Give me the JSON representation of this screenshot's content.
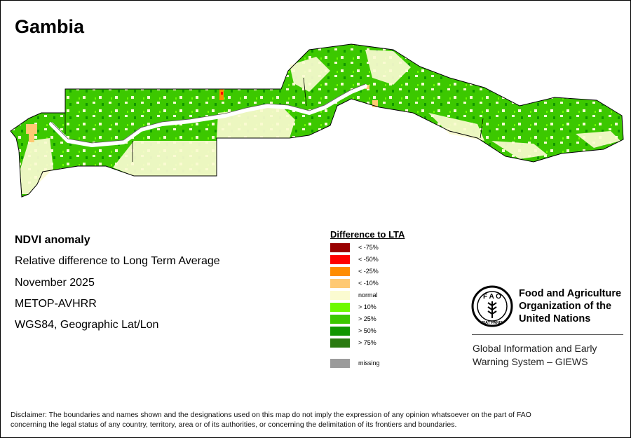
{
  "map": {
    "title": "Gambia",
    "colors": {
      "lt_minus_75": "#990000",
      "lt_minus_50": "#ff0000",
      "lt_minus_25": "#ff8c00",
      "lt_minus_10": "#ffc973",
      "normal": "#fbfbd1",
      "gt_10": "#6efa00",
      "gt_25": "#3cc800",
      "gt_50": "#119600",
      "gt_75": "#2a7a10",
      "missing": "#9b9b9b",
      "river": "#ffffff",
      "border": "#000000"
    }
  },
  "info": {
    "heading": "NDVI anomaly",
    "line1": "Relative difference to Long Term Average",
    "line2": "November 2025",
    "line3": "METOP-AVHRR",
    "line4": "WGS84, Geographic Lat/Lon"
  },
  "legend": {
    "title": "Difference to LTA",
    "items": [
      {
        "label": "< -75%",
        "color": "#990000"
      },
      {
        "label": "< -50%",
        "color": "#ff0000"
      },
      {
        "label": "< -25%",
        "color": "#ff8c00"
      },
      {
        "label": "< -10%",
        "color": "#ffc973"
      },
      {
        "label": "normal",
        "color": "#fbfbd1"
      },
      {
        "label": "> 10%",
        "color": "#6efa00"
      },
      {
        "label": "> 25%",
        "color": "#3cc800"
      },
      {
        "label": "> 50%",
        "color": "#119600"
      },
      {
        "label": "> 75%",
        "color": "#2a7a10"
      }
    ],
    "missing": {
      "label": "missing",
      "color": "#9b9b9b"
    }
  },
  "logo": {
    "org_line1": "Food and Agriculture",
    "org_line2": "Organization of the",
    "org_line3": "United Nations",
    "emblem_text": "FIAT PANIS",
    "emblem_letters": "F A O"
  },
  "giews": {
    "line1": "Global Information and Early",
    "line2": "Warning System – GIEWS"
  },
  "disclaimer": {
    "line1": "Disclaimer: The boundaries and names shown and the designations used on this map do not imply the expression of any opinion whatsoever on the part of FAO",
    "line2": "concerning the legal status of any country, territory, area or of its authorities, or concerning the delimitation of its frontiers and boundaries."
  }
}
